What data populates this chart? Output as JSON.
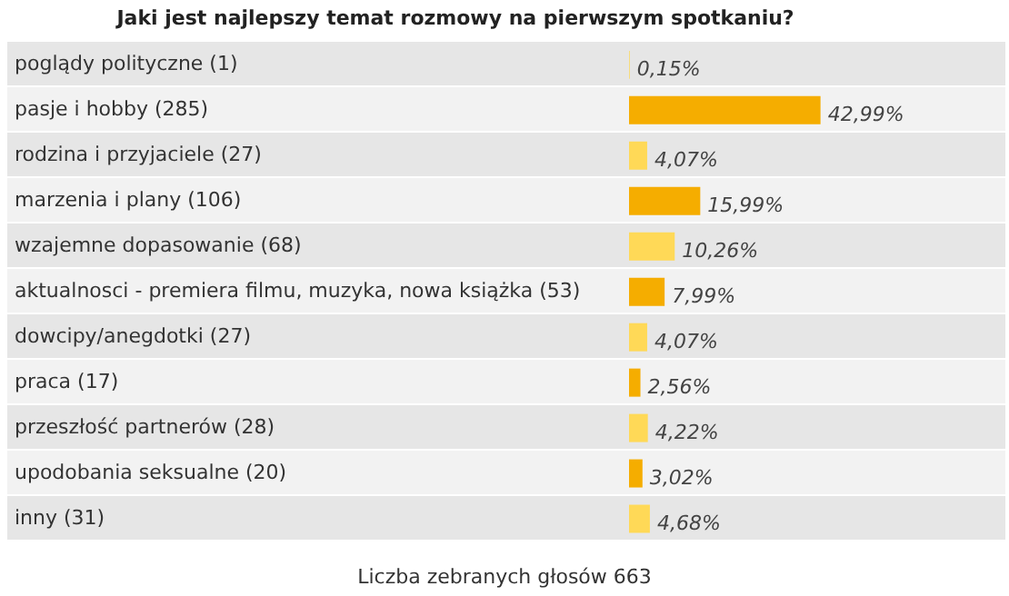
{
  "chart_data": {
    "type": "bar",
    "orientation": "horizontal",
    "title": "Jaki jest najlepszy temat rozmowy na pierwszym spotkaniu?",
    "categories": [
      "poglądy polityczne (1)",
      "pasje i hobby (285)",
      "rodzina i przyjaciele (27)",
      "marzenia i plany (106)",
      "wzajemne dopasowanie (68)",
      "aktualnosci - premiera filmu, muzyka, nowa książka (53)",
      "dowcipy/anegdotki (27)",
      "praca (17)",
      "przeszłość partnerów (28)",
      "upodobania seksualne (20)",
      "inny (31)"
    ],
    "values": [
      0.15,
      42.99,
      4.07,
      15.99,
      10.26,
      7.99,
      4.07,
      2.56,
      4.22,
      3.02,
      4.68
    ],
    "value_labels": [
      "0,15%",
      "42,99%",
      "4,07%",
      "15,99%",
      "10,26%",
      "7,99%",
      "4,07%",
      "2,56%",
      "4,22%",
      "3,02%",
      "4,68%"
    ],
    "colors": [
      "#ffd957",
      "#f5ad00",
      "#ffd957",
      "#f5ad00",
      "#ffd957",
      "#f5ad00",
      "#ffd957",
      "#f5ad00",
      "#ffd957",
      "#f5ad00",
      "#ffd957"
    ],
    "annotations": [
      "Liczba zebranych głosów 663"
    ],
    "grid": false,
    "legend": false
  }
}
